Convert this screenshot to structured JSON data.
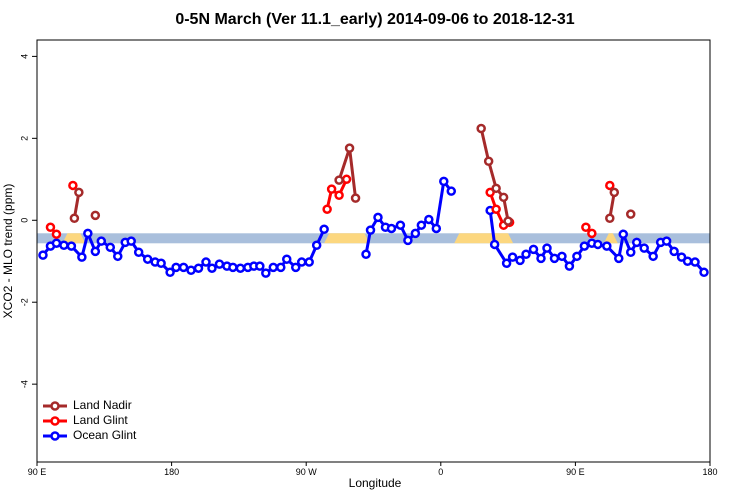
{
  "chart_data": {
    "type": "line",
    "title": "0-5N March (Ver 11.1_early)   2014-09-06 to 2018-12-31",
    "x_label": "Longitude",
    "y_label": "XCO2 - MLO trend (ppm)",
    "xlim": [
      90,
      540
    ],
    "ylim": [
      -5.9,
      4.4
    ],
    "xticks": [
      {
        "value": 90,
        "label": "90 E"
      },
      180,
      {
        "value": 270,
        "label": "90 W"
      },
      {
        "value": 360,
        "label": "0"
      },
      {
        "value": 450,
        "label": "90 E"
      },
      {
        "value": 540,
        "label": "180"
      }
    ],
    "yticks": [
      -4,
      -2,
      0,
      2,
      4
    ],
    "legend": "bottom-left",
    "band": {
      "y": -0.44,
      "ocean_color": "#a9bfdc",
      "land_color": "#fcd77f",
      "land": [
        [
          107,
          119
        ],
        [
          282,
          309
        ],
        [
          369,
          405
        ],
        [
          469,
          475
        ]
      ]
    },
    "series": [
      {
        "name": "Land Nadir",
        "color": "#a52a2a",
        "x": [
          115,
          118,
          null,
          129,
          null,
          292,
          299,
          303,
          null,
          387,
          392,
          397,
          402,
          405,
          null,
          473,
          476,
          null,
          487
        ],
        "values": [
          0.05,
          0.68,
          null,
          0.12,
          null,
          0.98,
          1.76,
          0.54,
          null,
          2.24,
          1.44,
          0.78,
          0.56,
          -0.02,
          null,
          0.05,
          0.68,
          null,
          0.15
        ]
      },
      {
        "name": "Land Glint",
        "color": "#ff0000",
        "x": [
          99,
          103,
          null,
          114,
          null,
          284,
          287,
          292,
          297,
          null,
          393,
          397,
          402,
          406,
          null,
          457,
          461,
          null,
          473
        ],
        "values": [
          -0.17,
          -0.34,
          null,
          0.85,
          null,
          0.27,
          0.76,
          0.61,
          1.0,
          null,
          0.68,
          0.27,
          -0.12,
          -0.05,
          null,
          -0.17,
          -0.32,
          null,
          0.85
        ]
      },
      {
        "name": "Ocean Glint",
        "color": "#0000ff",
        "x": [
          94,
          99,
          103,
          108,
          113,
          120,
          124,
          129,
          133,
          139,
          144,
          149,
          153,
          158,
          164,
          169,
          173,
          179,
          183,
          188,
          193,
          198,
          203,
          207,
          212,
          217,
          221,
          226,
          231,
          235,
          239,
          243,
          248,
          253,
          257,
          263,
          267,
          272,
          277,
          282,
          null,
          310,
          313,
          318,
          323,
          327,
          333,
          338,
          343,
          347,
          352,
          357,
          362,
          367,
          null,
          393,
          396,
          404,
          408,
          413,
          417,
          422,
          427,
          431,
          436,
          441,
          446,
          451,
          456,
          461,
          465,
          471,
          479,
          482,
          487,
          491,
          496,
          502,
          507,
          511,
          516,
          521,
          525,
          530,
          536
        ],
        "values": [
          -0.85,
          -0.63,
          -0.56,
          -0.61,
          -0.63,
          -0.9,
          -0.32,
          -0.76,
          -0.51,
          -0.66,
          -0.88,
          -0.54,
          -0.51,
          -0.78,
          -0.95,
          -1.02,
          -1.05,
          -1.27,
          -1.15,
          -1.15,
          -1.22,
          -1.17,
          -1.02,
          -1.17,
          -1.07,
          -1.12,
          -1.15,
          -1.17,
          -1.15,
          -1.12,
          -1.12,
          -1.29,
          -1.15,
          -1.15,
          -0.95,
          -1.15,
          -1.02,
          -1.02,
          -0.61,
          -0.22,
          null,
          -0.83,
          -0.24,
          0.07,
          -0.17,
          -0.2,
          -0.12,
          -0.49,
          -0.32,
          -0.12,
          0.02,
          -0.2,
          0.95,
          0.71,
          null,
          0.24,
          -0.59,
          -1.05,
          -0.9,
          -0.98,
          -0.83,
          -0.71,
          -0.93,
          -0.68,
          -0.93,
          -0.88,
          -1.12,
          -0.88,
          -0.63,
          -0.56,
          -0.59,
          -0.63,
          -0.93,
          -0.34,
          -0.78,
          -0.54,
          -0.68,
          -0.88,
          -0.54,
          -0.51,
          -0.76,
          -0.9,
          -1.0,
          -1.02,
          -1.27
        ]
      }
    ]
  }
}
